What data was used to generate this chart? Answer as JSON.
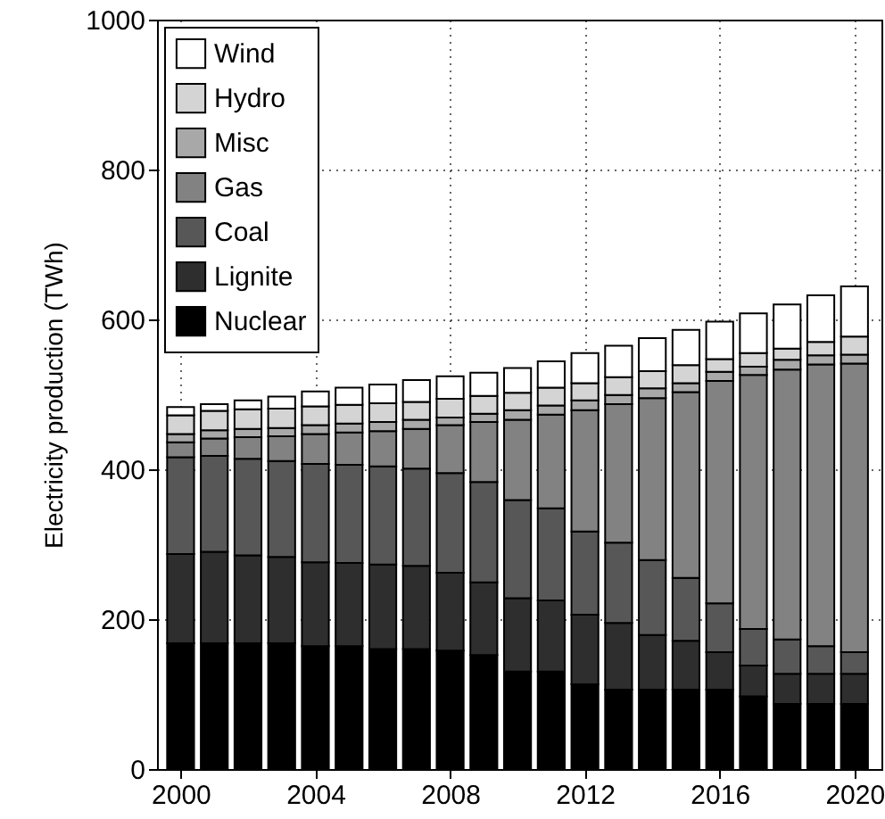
{
  "chart_data": {
    "type": "bar",
    "stacked": true,
    "ylabel": "Electricity production (TWh)",
    "x": [
      2000,
      2001,
      2002,
      2003,
      2004,
      2005,
      2006,
      2007,
      2008,
      2009,
      2010,
      2011,
      2012,
      2013,
      2014,
      2015,
      2016,
      2017,
      2018,
      2019,
      2020
    ],
    "xlim": [
      1999.3,
      2020.8
    ],
    "xticks": [
      2000,
      2004,
      2008,
      2012,
      2016,
      2020
    ],
    "ylim": [
      0,
      1000
    ],
    "yticks": [
      0,
      200,
      400,
      600,
      800,
      1000
    ],
    "grid": true,
    "legend": "top left",
    "series": [
      {
        "name": "Nuclear",
        "color": "#000000",
        "values": [
          168,
          168,
          168,
          168,
          164,
          164,
          160,
          160,
          158,
          152,
          130,
          130,
          113,
          106,
          106,
          106,
          106,
          97,
          87,
          87,
          87
        ]
      },
      {
        "name": "Lignite",
        "color": "#2e2e2e",
        "values": [
          119,
          122,
          117,
          115,
          112,
          111,
          113,
          111,
          104,
          97,
          98,
          95,
          93,
          89,
          73,
          65,
          50,
          41,
          40,
          40,
          40
        ]
      },
      {
        "name": "Coal",
        "color": "#575757",
        "values": [
          129,
          128,
          129,
          128,
          131,
          131,
          131,
          130,
          133,
          134,
          131,
          123,
          111,
          107,
          100,
          84,
          65,
          49,
          46,
          37,
          29
        ]
      },
      {
        "name": "Gas",
        "color": "#828282",
        "values": [
          20,
          23,
          29,
          33,
          40,
          43,
          47,
          53,
          64,
          80,
          107,
          125,
          162,
          185,
          216,
          248,
          297,
          339,
          360,
          376,
          385
        ]
      },
      {
        "name": "Misc",
        "color": "#a8a8a8",
        "values": [
          11,
          11,
          11,
          11,
          12,
          12,
          12,
          12,
          10,
          11,
          13,
          12,
          13,
          12,
          13,
          12,
          12,
          11,
          13,
          12,
          12
        ]
      },
      {
        "name": "Hydro",
        "color": "#d4d4d4",
        "values": [
          25,
          26,
          26,
          26,
          25,
          25,
          25,
          24,
          25,
          24,
          23,
          24,
          23,
          24,
          23,
          24,
          17,
          18,
          15,
          18,
          24
        ]
      },
      {
        "name": "Wind",
        "color": "#ffffff",
        "values": [
          11,
          9,
          12,
          16,
          20,
          23,
          25,
          29,
          30,
          31,
          33,
          35,
          40,
          42,
          44,
          47,
          50,
          53,
          59,
          62,
          67
        ]
      }
    ]
  }
}
